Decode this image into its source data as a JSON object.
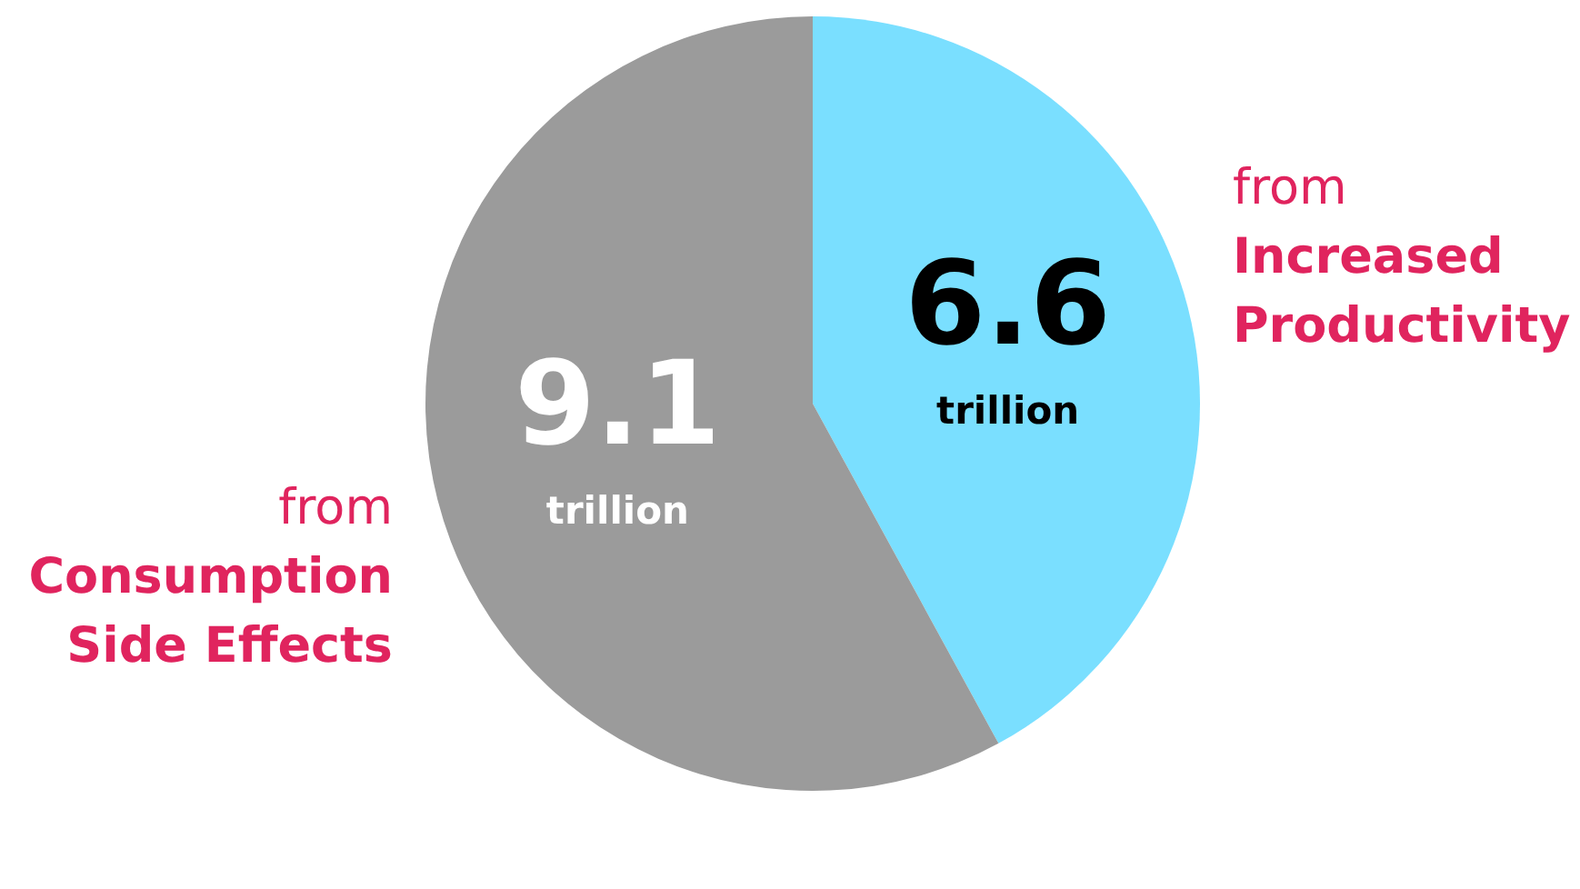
{
  "chart_data": {
    "type": "pie",
    "categories": [
      "from Increased Productivity",
      "from Consumption Side Effects"
    ],
    "values": [
      6.6,
      9.1
    ],
    "colors": [
      "#7adfff",
      "#9b9b9b"
    ],
    "value_labels": [
      "6.6 trillion",
      "9.1 trillion"
    ],
    "legend": false
  }
}
